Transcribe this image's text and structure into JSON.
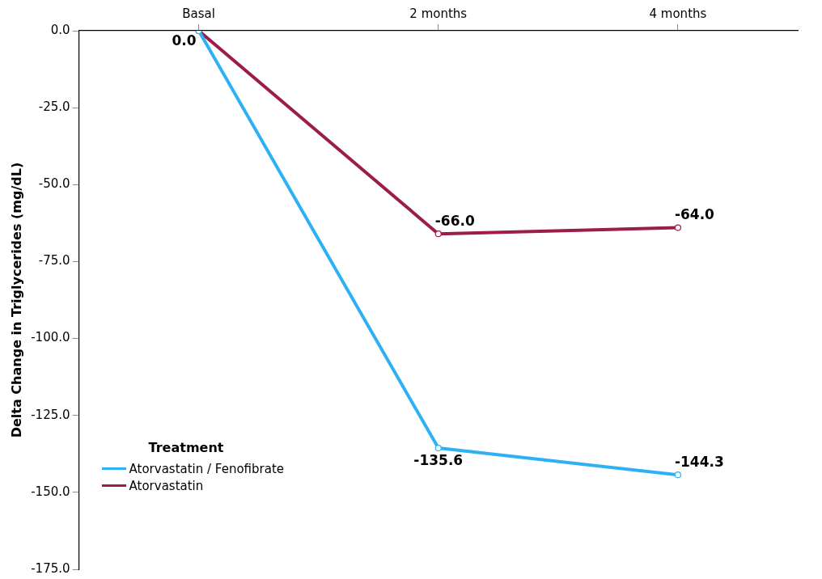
{
  "chart_data": {
    "type": "line",
    "ylabel": "Delta Change in Triglycerides (mg/dL)",
    "legend_title": "Treatment",
    "categories": [
      "Basal",
      "2 months",
      "4 months"
    ],
    "series": [
      {
        "name": "Atorvastatin / Fenofibrate",
        "color": "#2eb0f5",
        "values": [
          0,
          -135.6,
          -144.3
        ],
        "value_labels": [
          "0.0",
          "-135.6",
          "-144.3"
        ]
      },
      {
        "name": "Atorvastatin",
        "color": "#9c1c4c",
        "values": [
          0,
          -66,
          -64
        ],
        "value_labels": [
          null,
          "-66.0",
          "-64.0"
        ]
      }
    ],
    "ylim": [
      -175,
      0
    ],
    "yticks": [
      {
        "value": 0,
        "label": "0.0"
      },
      {
        "value": -25,
        "label": "-25.0"
      },
      {
        "value": -50,
        "label": "-50.0"
      },
      {
        "value": -75,
        "label": "-75.0"
      },
      {
        "value": -100,
        "label": "-100.0"
      },
      {
        "value": -125,
        "label": "-125.0"
      },
      {
        "value": -150,
        "label": "-150.0"
      },
      {
        "value": -175,
        "label": "-175.0"
      }
    ],
    "grid": false,
    "legend": "bottom left",
    "marker": "circle",
    "line_style": "solid"
  }
}
